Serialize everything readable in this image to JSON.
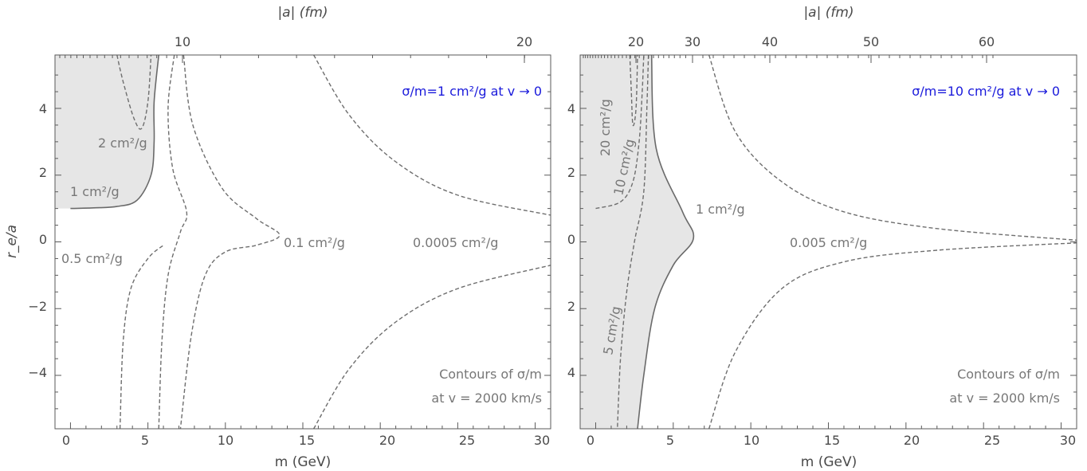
{
  "chart_data": [
    {
      "type": "contour",
      "x_axis": {
        "label": "m (GeV)",
        "range": [
          -1,
          31
        ],
        "ticks": [
          "0",
          "5",
          "10",
          "15",
          "20",
          "25",
          "30"
        ]
      },
      "y_axis": {
        "label": "r_e/a",
        "range": [
          -5.6,
          5.6
        ],
        "ticks": [
          "4",
          "2",
          "0",
          "−2",
          "−4"
        ]
      },
      "top_axis": {
        "label": "|a| (fm)",
        "ticks": [
          "10",
          "20"
        ]
      },
      "title": "σ/m=1 cm²/g at v → 0",
      "annotation": {
        "line1": "Contours of σ/m",
        "line2": "at v = 2000 km/s"
      },
      "contour_labels": [
        "2 cm²/g",
        "1 cm²/g",
        "0.5 cm²/g",
        "0.1 cm²/g",
        "0.0005 cm²/g"
      ],
      "shaded_region": "σ/m > 1 cm²/g",
      "contours": [
        {
          "level": "2 cm²/g",
          "points": [
            [
              3.0,
              5.6
            ],
            [
              3.4,
              4.8
            ],
            [
              4.1,
              3.7
            ],
            [
              4.6,
              3.4
            ],
            [
              5.0,
              4.2
            ],
            [
              5.2,
              5.6
            ]
          ]
        },
        {
          "level": "1 cm²/g",
          "points": [
            [
              0,
              1.0
            ],
            [
              1.5,
              1.02
            ],
            [
              3.0,
              1.06
            ],
            [
              4.3,
              1.25
            ],
            [
              5.2,
              2.0
            ],
            [
              5.4,
              3.0
            ],
            [
              5.4,
              4.2
            ],
            [
              5.7,
              5.6
            ]
          ]
        },
        {
          "level": "0.5 cm²/g",
          "points": [
            [
              6.7,
              5.6
            ],
            [
              6.3,
              4.0
            ],
            [
              6.6,
              2.2
            ],
            [
              7.5,
              0.9
            ],
            [
              7.1,
              0.3
            ],
            [
              6.3,
              -1.0
            ],
            [
              5.9,
              -3.0
            ],
            [
              5.7,
              -5.6
            ]
          ]
        },
        {
          "level": "0.5 cm²/g (lower)",
          "points": [
            [
              3.2,
              -5.6
            ],
            [
              3.4,
              -3.0
            ],
            [
              3.9,
              -1.4
            ],
            [
              5.0,
              -0.5
            ],
            [
              6.0,
              -0.1
            ]
          ]
        },
        {
          "level": "0.1 cm²/g",
          "points": [
            [
              7.3,
              5.6
            ],
            [
              7.9,
              3.5
            ],
            [
              9.8,
              1.6
            ],
            [
              12.0,
              0.7
            ],
            [
              13.5,
              0.2
            ],
            [
              12.0,
              -0.1
            ],
            [
              10.0,
              -0.3
            ],
            [
              8.7,
              -1.0
            ],
            [
              7.8,
              -2.8
            ],
            [
              7.1,
              -5.6
            ]
          ]
        },
        {
          "level": "0.0005 cm²/g",
          "points": [
            [
              15.7,
              5.6
            ],
            [
              18.0,
              3.8
            ],
            [
              21.0,
              2.4
            ],
            [
              25.0,
              1.4
            ],
            [
              31.0,
              0.8
            ]
          ]
        },
        {
          "level": "0.0005 cm²/g (lower)",
          "points": [
            [
              15.7,
              -5.6
            ],
            [
              18.0,
              -3.8
            ],
            [
              21.0,
              -2.4
            ],
            [
              25.0,
              -1.4
            ],
            [
              31.0,
              -0.7
            ]
          ]
        }
      ]
    },
    {
      "type": "contour",
      "x_axis": {
        "label": "m (GeV)",
        "range": [
          -1,
          31
        ],
        "ticks": [
          "0",
          "5",
          "10",
          "15",
          "20",
          "25",
          "30"
        ]
      },
      "y_axis": {
        "label": "",
        "range": [
          -5.6,
          5.6
        ],
        "ticks": [
          "4",
          "2",
          "0",
          "2",
          "4"
        ]
      },
      "top_axis": {
        "label": "|a| (fm)",
        "ticks": [
          "20",
          "30",
          "40",
          "50",
          "60"
        ]
      },
      "title": "σ/m=10 cm²/g at v → 0",
      "annotation": {
        "line1": "Contours of σ/m",
        "line2": "at v = 2000 km/s"
      },
      "contour_labels": [
        "20 cm²/g",
        "10 cm²/g",
        "1 cm²/g",
        "5 cm²/g",
        "0.005 cm²/g"
      ],
      "shaded_region": "σ/m > 1 cm²/g",
      "contours": [
        {
          "level": "20 cm²/g",
          "points": [
            [
              2.2,
              5.6
            ],
            [
              2.3,
              4.5
            ],
            [
              2.4,
              3.5
            ],
            [
              2.6,
              4.0
            ],
            [
              2.7,
              5.6
            ]
          ]
        },
        {
          "level": "10 cm²/g",
          "points": [
            [
              0,
              1.0
            ],
            [
              1.6,
              1.2
            ],
            [
              2.4,
              1.8
            ],
            [
              2.8,
              3.0
            ],
            [
              3.0,
              4.5
            ],
            [
              3.1,
              5.6
            ]
          ]
        },
        {
          "level": "5 cm²/g",
          "points": [
            [
              3.4,
              5.6
            ],
            [
              3.3,
              4.0
            ],
            [
              3.1,
              1.5
            ],
            [
              2.5,
              0.0
            ],
            [
              2.0,
              -1.5
            ],
            [
              1.6,
              -3.5
            ],
            [
              1.4,
              -5.6
            ]
          ]
        },
        {
          "level": "1 cm²/g",
          "points": [
            [
              3.6,
              5.6
            ],
            [
              3.9,
              2.8
            ],
            [
              5.6,
              0.9
            ],
            [
              6.3,
              0.1
            ],
            [
              5.0,
              -0.7
            ],
            [
              3.8,
              -2.0
            ],
            [
              3.1,
              -4.0
            ],
            [
              2.7,
              -5.6
            ]
          ]
        },
        {
          "level": "0.005 cm²/g",
          "points": [
            [
              7.3,
              5.6
            ],
            [
              9.0,
              3.3
            ],
            [
              12.0,
              1.8
            ],
            [
              16.0,
              0.9
            ],
            [
              22.0,
              0.4
            ],
            [
              31.0,
              0.05
            ]
          ]
        },
        {
          "level": "0.005 cm²/g (lower)",
          "points": [
            [
              7.3,
              -5.6
            ],
            [
              9.0,
              -3.3
            ],
            [
              12.0,
              -1.4
            ],
            [
              16.0,
              -0.6
            ],
            [
              22.0,
              -0.25
            ],
            [
              31.0,
              -0.03
            ]
          ]
        }
      ]
    }
  ]
}
